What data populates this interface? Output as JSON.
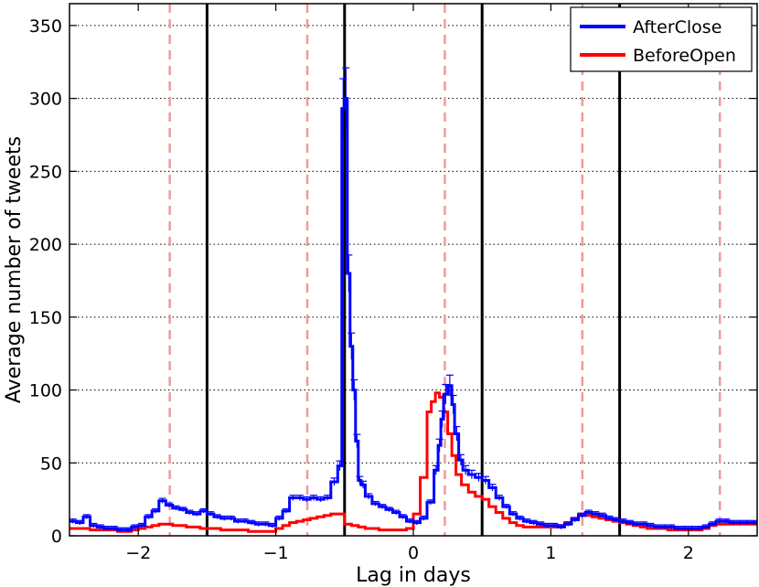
{
  "chart_data": {
    "type": "line",
    "title": "",
    "xlabel": "Lag in days",
    "ylabel": "Average number of tweets",
    "xlim": [
      -2.5,
      2.5
    ],
    "ylim": [
      0,
      365
    ],
    "x_ticks": [
      -2,
      -1,
      0,
      1,
      2
    ],
    "x_tick_labels": [
      "−2",
      "−1",
      "0",
      "1",
      "2"
    ],
    "y_ticks": [
      0,
      50,
      100,
      150,
      200,
      250,
      300,
      350
    ],
    "y_tick_labels": [
      "0",
      "50",
      "100",
      "150",
      "200",
      "250",
      "300",
      "350"
    ],
    "grid": "horizontal dotted",
    "legend_position": "top-right",
    "market_close_lines": [
      -1.5,
      -0.5,
      0.5,
      1.5
    ],
    "market_open_lines": [
      -1.771,
      -0.771,
      0.229,
      1.229,
      2.229
    ],
    "colors": {
      "AfterClose": "#0000ff",
      "BeforeOpen": "#ff0000",
      "close_line": "#000000",
      "open_line": "#f09a9a",
      "grid": "#000000"
    },
    "series": [
      {
        "name": "AfterClose",
        "x": [
          -2.5,
          -2.45,
          -2.4,
          -2.35,
          -2.3,
          -2.25,
          -2.2,
          -2.15,
          -2.1,
          -2.05,
          -2.0,
          -1.95,
          -1.9,
          -1.85,
          -1.8,
          -1.75,
          -1.7,
          -1.65,
          -1.6,
          -1.55,
          -1.5,
          -1.45,
          -1.4,
          -1.35,
          -1.3,
          -1.25,
          -1.2,
          -1.15,
          -1.1,
          -1.05,
          -1.0,
          -0.95,
          -0.9,
          -0.85,
          -0.8,
          -0.75,
          -0.7,
          -0.65,
          -0.6,
          -0.55,
          -0.52,
          -0.5,
          -0.48,
          -0.46,
          -0.44,
          -0.42,
          -0.4,
          -0.38,
          -0.35,
          -0.3,
          -0.25,
          -0.2,
          -0.15,
          -0.1,
          -0.05,
          0.0,
          0.05,
          0.1,
          0.15,
          0.18,
          0.2,
          0.22,
          0.25,
          0.28,
          0.3,
          0.33,
          0.36,
          0.4,
          0.45,
          0.5,
          0.55,
          0.6,
          0.65,
          0.7,
          0.75,
          0.8,
          0.85,
          0.9,
          0.95,
          1.0,
          1.05,
          1.1,
          1.15,
          1.2,
          1.25,
          1.3,
          1.35,
          1.4,
          1.45,
          1.5,
          1.55,
          1.6,
          1.65,
          1.7,
          1.75,
          1.8,
          1.85,
          1.9,
          1.95,
          2.0,
          2.05,
          2.1,
          2.15,
          2.2,
          2.25,
          2.3,
          2.35,
          2.4,
          2.45
        ],
        "values": [
          10,
          9,
          13,
          7,
          6,
          5,
          5,
          4,
          4,
          6,
          7,
          13,
          17,
          24,
          21,
          19,
          18,
          16,
          15,
          17,
          15,
          13,
          12,
          12,
          10,
          10,
          9,
          8,
          8,
          7,
          12,
          17,
          26,
          26,
          25,
          26,
          25,
          26,
          37,
          48,
          293,
          300,
          180,
          130,
          100,
          65,
          38,
          35,
          27,
          22,
          20,
          18,
          16,
          13,
          10,
          9,
          12,
          23,
          45,
          62,
          80,
          97,
          103,
          90,
          70,
          52,
          45,
          42,
          40,
          38,
          33,
          26,
          20,
          15,
          12,
          10,
          9,
          8,
          7,
          7,
          6,
          8,
          11,
          14,
          16,
          15,
          14,
          12,
          11,
          10,
          9,
          8,
          8,
          7,
          6,
          6,
          6,
          5,
          5,
          5,
          5,
          6,
          8,
          10,
          10,
          9,
          9,
          9,
          9
        ]
      },
      {
        "name": "BeforeOpen",
        "x": [
          -2.5,
          -2.45,
          -2.4,
          -2.35,
          -2.3,
          -2.25,
          -2.2,
          -2.15,
          -2.1,
          -2.05,
          -2.0,
          -1.95,
          -1.9,
          -1.85,
          -1.8,
          -1.75,
          -1.7,
          -1.65,
          -1.6,
          -1.55,
          -1.5,
          -1.45,
          -1.4,
          -1.35,
          -1.3,
          -1.25,
          -1.2,
          -1.15,
          -1.1,
          -1.05,
          -1.0,
          -0.95,
          -0.9,
          -0.85,
          -0.8,
          -0.75,
          -0.7,
          -0.65,
          -0.6,
          -0.55,
          -0.5,
          -0.45,
          -0.4,
          -0.35,
          -0.3,
          -0.25,
          -0.2,
          -0.15,
          -0.1,
          -0.05,
          0.0,
          0.05,
          0.1,
          0.13,
          0.16,
          0.19,
          0.22,
          0.25,
          0.28,
          0.31,
          0.35,
          0.4,
          0.45,
          0.5,
          0.55,
          0.6,
          0.65,
          0.7,
          0.75,
          0.8,
          0.85,
          0.9,
          0.95,
          1.0,
          1.05,
          1.1,
          1.15,
          1.2,
          1.25,
          1.3,
          1.35,
          1.4,
          1.45,
          1.5,
          1.55,
          1.6,
          1.65,
          1.7,
          1.75,
          1.8,
          1.85,
          1.9,
          1.95,
          2.0,
          2.05,
          2.1,
          2.15,
          2.2,
          2.25,
          2.3,
          2.35,
          2.4,
          2.45
        ],
        "values": [
          5,
          5,
          5,
          4,
          4,
          4,
          4,
          3,
          3,
          4,
          5,
          6,
          7,
          8,
          8,
          7,
          7,
          6,
          6,
          5,
          5,
          5,
          4,
          4,
          4,
          4,
          3,
          3,
          3,
          3,
          5,
          7,
          9,
          10,
          11,
          12,
          13,
          14,
          15,
          15,
          8,
          7,
          6,
          5,
          5,
          4,
          4,
          4,
          4,
          5,
          15,
          40,
          85,
          92,
          98,
          95,
          85,
          70,
          55,
          42,
          35,
          30,
          27,
          25,
          20,
          16,
          12,
          9,
          7,
          6,
          6,
          6,
          6,
          6,
          7,
          9,
          12,
          15,
          14,
          13,
          12,
          11,
          10,
          9,
          8,
          7,
          6,
          5,
          5,
          5,
          4,
          4,
          4,
          4,
          4,
          5,
          7,
          8,
          8,
          8,
          8,
          8,
          8
        ]
      }
    ]
  }
}
